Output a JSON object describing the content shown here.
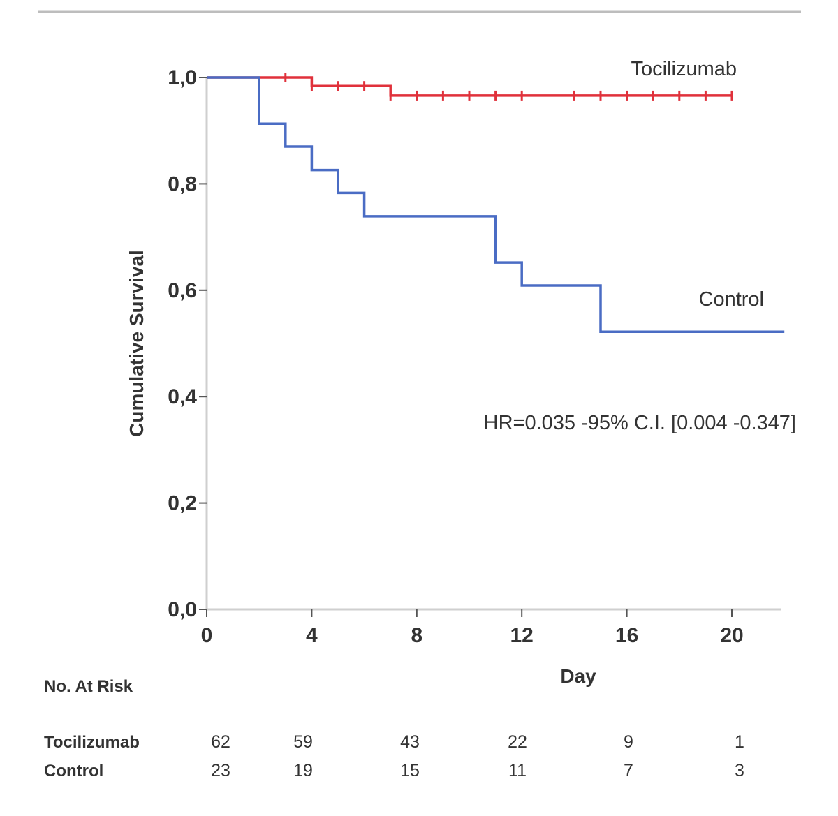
{
  "chart_data": {
    "type": "line",
    "subtype": "kaplan-meier step",
    "title": "",
    "xlabel": "Day",
    "ylabel": "Cumulative Survival",
    "xlim": [
      0,
      22
    ],
    "ylim": [
      0,
      1.0
    ],
    "x_ticks": [
      0,
      4,
      8,
      12,
      16,
      20
    ],
    "x_tick_labels": [
      "0",
      "4",
      "8",
      "12",
      "16",
      "20"
    ],
    "y_ticks": [
      0,
      0.2,
      0.4,
      0.6,
      0.8,
      1.0
    ],
    "y_tick_labels": [
      "0,0",
      "0,2",
      "0,4",
      "0,6",
      "0,8",
      "1,0"
    ],
    "grid": false,
    "series": [
      {
        "name": "Tocilizumab",
        "color": "#e0313b",
        "steps": [
          [
            0,
            1.0
          ],
          [
            4,
            0.984
          ],
          [
            7,
            0.966
          ],
          [
            20,
            0.966
          ]
        ],
        "censored": [
          [
            3,
            1.0
          ],
          [
            4,
            0.984
          ],
          [
            5,
            0.984
          ],
          [
            6,
            0.984
          ],
          [
            7,
            0.966
          ],
          [
            8,
            0.966
          ],
          [
            9,
            0.966
          ],
          [
            10,
            0.966
          ],
          [
            11,
            0.966
          ],
          [
            12,
            0.966
          ],
          [
            14,
            0.966
          ],
          [
            15,
            0.966
          ],
          [
            16,
            0.966
          ],
          [
            17,
            0.966
          ],
          [
            18,
            0.966
          ],
          [
            19,
            0.966
          ],
          [
            20,
            0.966
          ]
        ]
      },
      {
        "name": "Control",
        "color": "#4a6cc4",
        "steps": [
          [
            0,
            1.0
          ],
          [
            2,
            0.913
          ],
          [
            3,
            0.87
          ],
          [
            4,
            0.826
          ],
          [
            5,
            0.783
          ],
          [
            6,
            0.739
          ],
          [
            11,
            0.652
          ],
          [
            12,
            0.609
          ],
          [
            15,
            0.522
          ],
          [
            22,
            0.522
          ]
        ],
        "censored": []
      }
    ],
    "annotations": [
      "HR=0.035 -95% C.I. [0.004 -0.347]"
    ],
    "risk_table": {
      "title": "No. At Risk",
      "days": [
        0,
        4,
        8,
        12,
        16,
        20
      ],
      "rows": [
        {
          "label": "Tocilizumab",
          "values": [
            "62",
            "59",
            "43",
            "22",
            "9",
            "1"
          ]
        },
        {
          "label": "Control",
          "values": [
            "23",
            "19",
            "15",
            "11",
            "7",
            "3"
          ]
        }
      ]
    }
  }
}
